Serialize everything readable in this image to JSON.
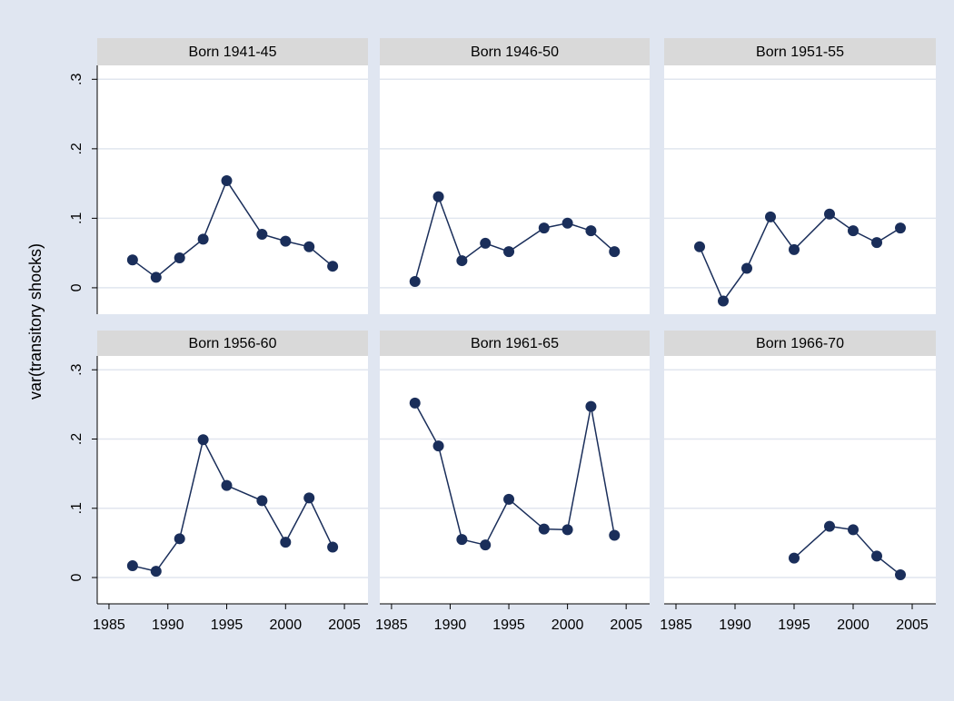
{
  "ylabel": "var(transitory shocks)",
  "xlim": [
    1984,
    2007
  ],
  "xticks": [
    1985,
    1990,
    1995,
    2000,
    2005
  ],
  "ylim": [
    -0.038,
    0.32
  ],
  "yticks": [
    0,
    {
      "value": 0.1,
      "label": ".1"
    },
    {
      "value": 0.2,
      "label": ".2"
    },
    {
      "value": 0.3,
      "label": ".3"
    }
  ],
  "color": "#1a2e5a",
  "grid": true,
  "chart_data": [
    {
      "type": "line",
      "title": "Born 1941-45",
      "x": [
        1987,
        1989,
        1991,
        1993,
        1995,
        1998,
        2000,
        2002,
        2004
      ],
      "values": [
        0.04,
        0.015,
        0.043,
        0.07,
        0.154,
        0.077,
        0.067,
        0.059,
        0.031
      ]
    },
    {
      "type": "line",
      "title": "Born 1946-50",
      "x": [
        1987,
        1989,
        1991,
        1993,
        1995,
        1998,
        2000,
        2002,
        2004
      ],
      "values": [
        0.009,
        0.131,
        0.039,
        0.064,
        0.052,
        0.086,
        0.093,
        0.082,
        0.052
      ]
    },
    {
      "type": "line",
      "title": "Born 1951-55",
      "x": [
        1987,
        1989,
        1991,
        1993,
        1995,
        1998,
        2000,
        2002,
        2004
      ],
      "values": [
        0.059,
        -0.019,
        0.028,
        0.102,
        0.055,
        0.106,
        0.082,
        0.065,
        0.086
      ]
    },
    {
      "type": "line",
      "title": "Born 1956-60",
      "x": [
        1987,
        1989,
        1991,
        1993,
        1995,
        1998,
        2000,
        2002,
        2004
      ],
      "values": [
        0.017,
        0.009,
        0.056,
        0.199,
        0.133,
        0.111,
        0.051,
        0.115,
        0.044
      ]
    },
    {
      "type": "line",
      "title": "Born 1961-65",
      "x": [
        1987,
        1989,
        1991,
        1993,
        1995,
        1998,
        2000,
        2002,
        2004
      ],
      "values": [
        0.252,
        0.19,
        0.055,
        0.047,
        0.113,
        0.07,
        0.069,
        0.247,
        0.061
      ]
    },
    {
      "type": "line",
      "title": "Born 1966-70",
      "x": [
        1995,
        1998,
        2000,
        2002,
        2004
      ],
      "values": [
        0.028,
        0.074,
        0.069,
        0.031,
        0.004
      ]
    }
  ]
}
